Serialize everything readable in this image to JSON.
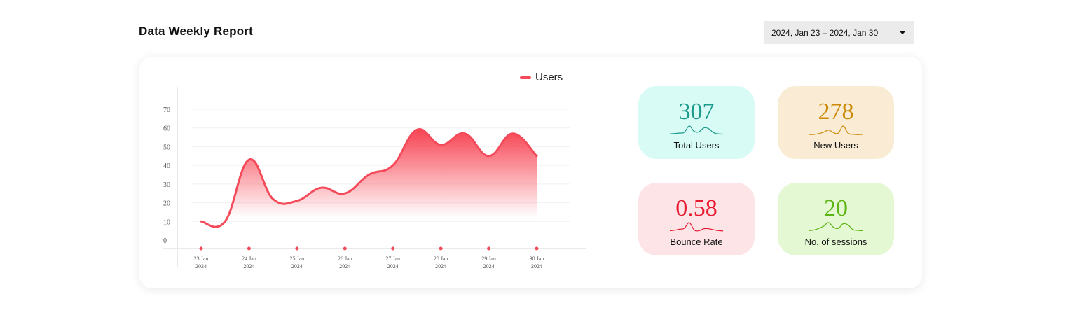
{
  "header": {
    "title": "Data Weekly Report",
    "date_range": "2024, Jan 23 – 2024, Jan 30",
    "dropdown_icon": "caret-down-icon"
  },
  "chart_data": {
    "type": "area",
    "title": "",
    "xlabel": "",
    "ylabel": "",
    "ylim": [
      0,
      70
    ],
    "yticks": [
      "0",
      "10",
      "20",
      "30",
      "40",
      "50",
      "60",
      "70"
    ],
    "grid": true,
    "legend_position": "top-right",
    "x_tick_labels": [
      {
        "day": "23 Jan",
        "year": "2024"
      },
      {
        "day": "24 Jan",
        "year": "2024"
      },
      {
        "day": "25 Jan",
        "year": "2024"
      },
      {
        "day": "26 Jan",
        "year": "2024"
      },
      {
        "day": "27 Jan",
        "year": "2024"
      },
      {
        "day": "28 Jan",
        "year": "2024"
      },
      {
        "day": "29 Jan",
        "year": "2024"
      },
      {
        "day": "30 Jan",
        "year": "2024"
      }
    ],
    "series": [
      {
        "name": "Users",
        "color": "#f44a5a",
        "x": [
          "2024-01-23 00:00",
          "2024-01-23 12:00",
          "2024-01-24 00:00",
          "2024-01-24 12:00",
          "2024-01-25 00:00",
          "2024-01-25 12:00",
          "2024-01-26 00:00",
          "2024-01-26 12:00",
          "2024-01-27 00:00",
          "2024-01-27 12:00",
          "2024-01-28 00:00",
          "2024-01-28 12:00",
          "2024-01-29 00:00",
          "2024-01-29 12:00",
          "2024-01-30 00:00"
        ],
        "y": [
          10,
          10,
          43,
          22,
          21,
          28,
          25,
          35,
          40,
          59,
          51,
          57,
          45,
          57,
          45
        ]
      }
    ]
  },
  "stats": [
    {
      "value": "307",
      "label": "Total Users",
      "bg": "#d9fbf5",
      "color": "#1a9a8a",
      "trend": [
        1,
        1.2,
        1.6,
        2.2,
        7,
        3,
        2.5,
        5.5,
        5,
        2,
        1,
        0.8
      ]
    },
    {
      "value": "278",
      "label": "New Users",
      "bg": "#faecd4",
      "color": "#cc8a0a",
      "trend": [
        0.5,
        0.8,
        1.5,
        3,
        5,
        2.5,
        2,
        9,
        2,
        0.8,
        0.5,
        0.7
      ]
    },
    {
      "value": "0.58",
      "label": "Bounce Rate",
      "bg": "#fde4e7",
      "color": "#e8192f",
      "trend": [
        1,
        1.5,
        2.5,
        3.5,
        9,
        2,
        1,
        3,
        3,
        2,
        1.2,
        0.8
      ]
    },
    {
      "value": "20",
      "label": "No. of sessions",
      "bg": "#e5f8d4",
      "color": "#5cb512",
      "trend": [
        0.5,
        0.8,
        1.5,
        2.5,
        4,
        2,
        1.5,
        3.5,
        3,
        1,
        0.6,
        0.5
      ]
    }
  ]
}
